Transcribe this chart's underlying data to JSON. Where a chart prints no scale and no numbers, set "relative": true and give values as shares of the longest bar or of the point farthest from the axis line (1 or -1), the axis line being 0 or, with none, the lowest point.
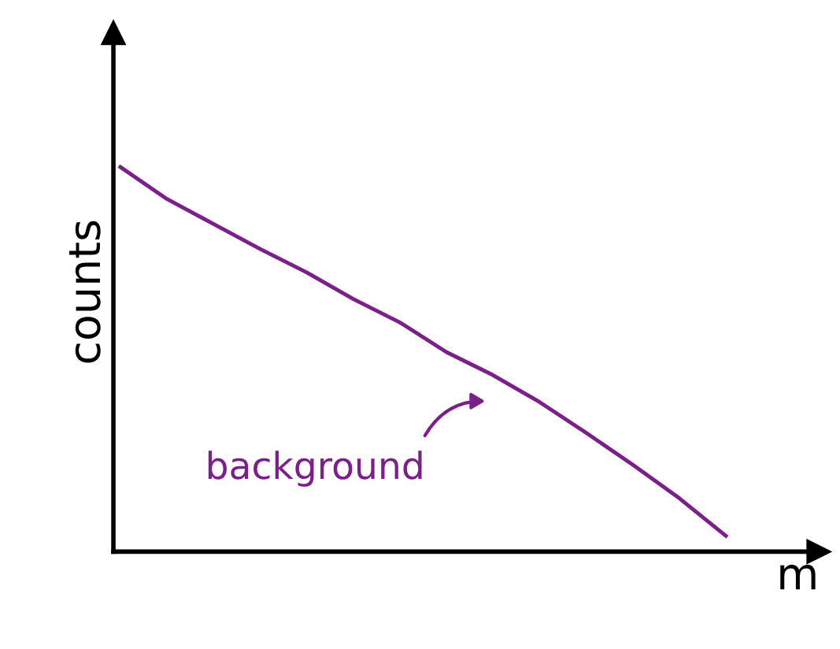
{
  "chart_data": {
    "type": "line",
    "relative": true,
    "xlabel": "m",
    "ylabel": "counts",
    "categories": [
      null,
      null,
      null,
      null,
      null,
      null,
      null,
      null,
      null,
      null,
      null,
      null,
      null,
      null
    ],
    "series": [
      {
        "color": "#7b1f8a",
        "values": [
          1,
          0.917,
          0.852,
          0.787,
          0.726,
          0.657,
          0.596,
          0.519,
          0.459,
          0.389,
          0.309,
          0.226,
          0.139,
          0.041
        ]
      }
    ],
    "annotations": [
      "background"
    ],
    "tick_labels": false,
    "marker": "none",
    "line_style": "solid"
  }
}
